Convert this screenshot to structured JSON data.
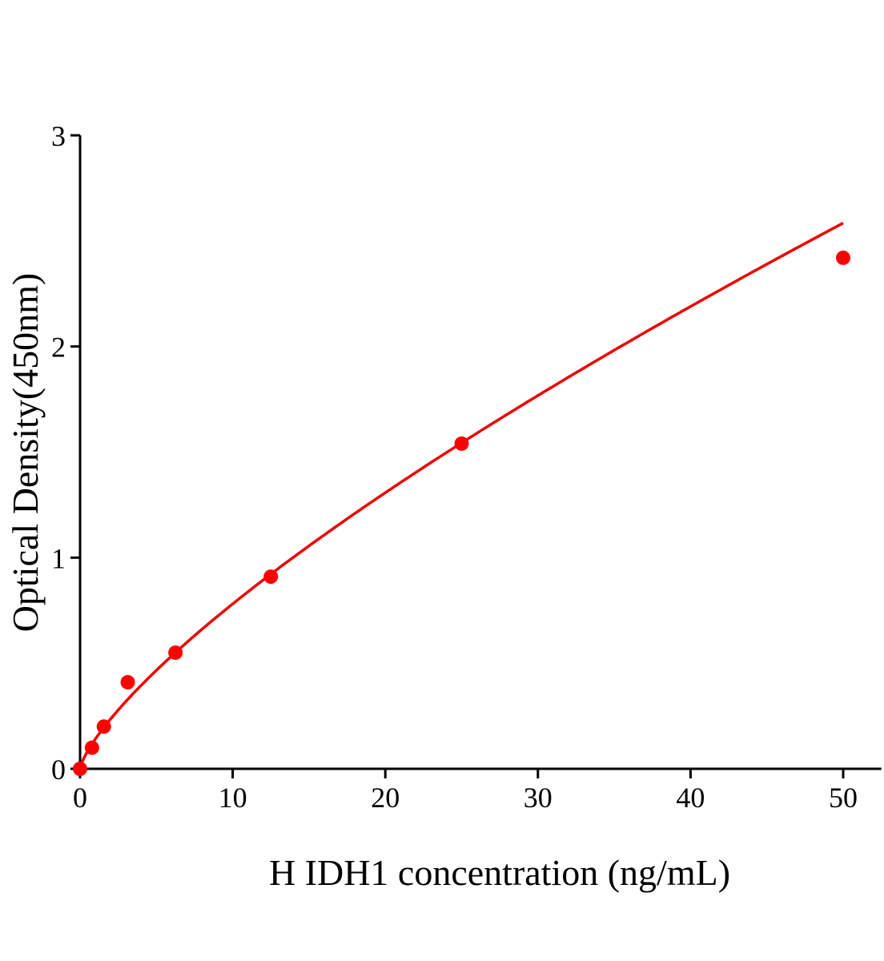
{
  "chart_data": {
    "type": "scatter",
    "title": "",
    "xlabel": "H IDH1 concentration (ng/mL)",
    "ylabel": "Optical Density(450nm)",
    "xlim": [
      0,
      52.5
    ],
    "ylim": [
      0,
      3
    ],
    "xticks": [
      "0",
      "10",
      "20",
      "30",
      "40",
      "50"
    ],
    "yticks": [
      "0",
      "1",
      "2",
      "3"
    ],
    "grid": false,
    "legend": "none",
    "series": [
      {
        "x": [
          0,
          0.78,
          1.56,
          3.125,
          6.25,
          12.5,
          25,
          50
        ],
        "y": [
          0.0,
          0.1,
          0.2,
          0.41,
          0.55,
          0.91,
          1.54,
          2.42
        ],
        "color": "#ff0000",
        "fit_line": true,
        "fit_color": "#ee0000"
      }
    ]
  }
}
